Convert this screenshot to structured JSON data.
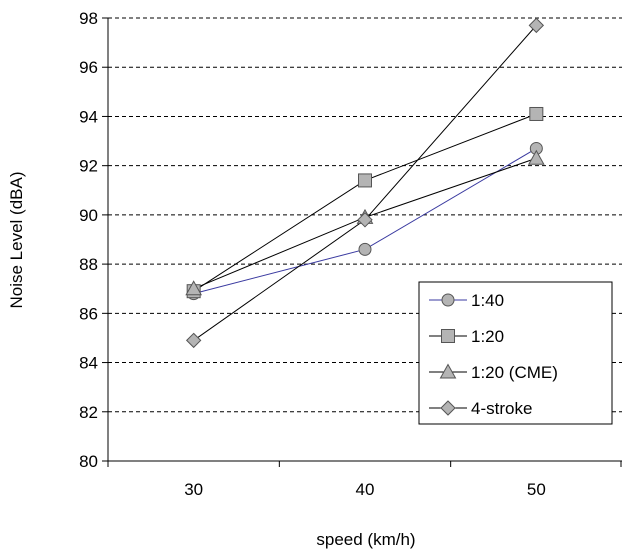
{
  "chart_data": {
    "type": "line",
    "title": "",
    "xlabel": "speed (km/h)",
    "ylabel": "Noise Level (dBA)",
    "x": [
      30,
      40,
      50
    ],
    "x_tick_labels": [
      "30",
      "40",
      "50"
    ],
    "xlim": [
      25,
      55
    ],
    "ylim": [
      80,
      98
    ],
    "y_ticks": [
      80,
      82,
      84,
      86,
      88,
      90,
      92,
      94,
      96,
      98
    ],
    "y_tick_labels": [
      "80",
      "82",
      "84",
      "86",
      "88",
      "90",
      "92",
      "94",
      "96",
      "98"
    ],
    "grid": "horizontal dashed",
    "legend_position": "bottom-right",
    "series": [
      {
        "name": "1:40",
        "values": [
          86.8,
          88.6,
          92.7
        ],
        "marker": "circle",
        "line_color": "#3a3aa0"
      },
      {
        "name": "1:20",
        "values": [
          86.9,
          91.4,
          94.1
        ],
        "marker": "square",
        "line_color": "#000000"
      },
      {
        "name": "1:20 (CME)",
        "values": [
          87.0,
          89.9,
          92.3
        ],
        "marker": "triangle",
        "line_color": "#000000"
      },
      {
        "name": "4-stroke",
        "values": [
          84.9,
          89.8,
          97.7
        ],
        "marker": "diamond",
        "line_color": "#000000"
      }
    ],
    "marker_fill": "#b4b4b4",
    "marker_stroke": "#555555"
  }
}
